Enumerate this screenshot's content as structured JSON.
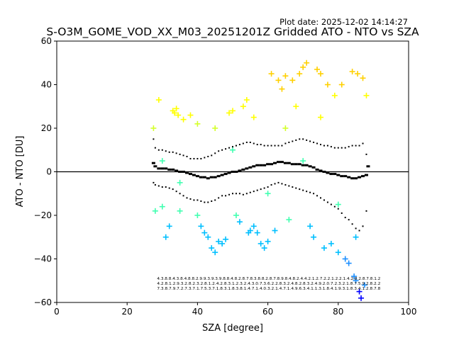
{
  "chart_data": {
    "type": "scatter",
    "plot_date": "Plot date: 2025-12-02 14:14:27",
    "title": "S-O3M_GOME_VOD_XX_M03_20251201Z Gridded ATO - NTO vs SZA",
    "xlabel": "SZA [degree]",
    "ylabel": "ATO - NTO [DU]",
    "xlim": [
      0,
      100
    ],
    "ylim": [
      -60,
      60
    ],
    "xticks": [
      0,
      20,
      40,
      60,
      80,
      100
    ],
    "yticks": [
      -60,
      -40,
      -20,
      0,
      20,
      40,
      60
    ],
    "grid": false,
    "marker": "+",
    "zero_line": 0,
    "colormap": [
      "#0000ff",
      "#1e90ff",
      "#00bfff",
      "#40ffb0",
      "#7cfc00",
      "#d4ff2a",
      "#ffff00",
      "#ffd000",
      "#ffa500"
    ],
    "median_color": "#000000",
    "points": [
      [
        27.5,
        20
      ],
      [
        28,
        -18
      ],
      [
        29,
        33
      ],
      [
        30,
        -16
      ],
      [
        31,
        -30
      ],
      [
        32,
        -25
      ],
      [
        33,
        28
      ],
      [
        33.5,
        27
      ],
      [
        34,
        29
      ],
      [
        34.5,
        26
      ],
      [
        35,
        -18
      ],
      [
        36,
        24
      ],
      [
        38,
        26
      ],
      [
        40,
        22
      ],
      [
        41,
        -25
      ],
      [
        42,
        -28
      ],
      [
        43,
        -30
      ],
      [
        44,
        -35
      ],
      [
        45,
        -37
      ],
      [
        46,
        -32
      ],
      [
        47,
        -33
      ],
      [
        48,
        -31
      ],
      [
        49,
        27
      ],
      [
        50,
        28
      ],
      [
        51,
        -20
      ],
      [
        52,
        -23
      ],
      [
        53,
        30
      ],
      [
        54,
        33
      ],
      [
        54.5,
        -28
      ],
      [
        55,
        -27
      ],
      [
        56,
        -25
      ],
      [
        57,
        -28
      ],
      [
        58,
        -33
      ],
      [
        59,
        -35
      ],
      [
        60,
        -32
      ],
      [
        61,
        45
      ],
      [
        62,
        -27
      ],
      [
        63,
        42
      ],
      [
        64,
        38
      ],
      [
        65,
        44
      ],
      [
        66,
        -22
      ],
      [
        67,
        42
      ],
      [
        68,
        30
      ],
      [
        69,
        45
      ],
      [
        70,
        48
      ],
      [
        71,
        50
      ],
      [
        72,
        -25
      ],
      [
        73,
        -30
      ],
      [
        74,
        47
      ],
      [
        75,
        45
      ],
      [
        76,
        -35
      ],
      [
        77,
        40
      ],
      [
        78,
        -33
      ],
      [
        79,
        35
      ],
      [
        80,
        -37
      ],
      [
        81,
        40
      ],
      [
        82,
        -40
      ],
      [
        83,
        -42
      ],
      [
        84,
        46
      ],
      [
        84.5,
        -48
      ],
      [
        85,
        -50
      ],
      [
        85.5,
        45
      ],
      [
        86,
        -55
      ],
      [
        86.5,
        -58
      ],
      [
        87,
        43
      ],
      [
        87.5,
        -52
      ],
      [
        88,
        35
      ],
      [
        45,
        20
      ],
      [
        56,
        25
      ],
      [
        30,
        5
      ],
      [
        35,
        -5
      ],
      [
        50,
        10
      ],
      [
        60,
        -10
      ],
      [
        70,
        5
      ],
      [
        80,
        -15
      ],
      [
        65,
        20
      ],
      [
        40,
        -20
      ],
      [
        75,
        25
      ],
      [
        85,
        -30
      ]
    ],
    "median": [
      [
        27.5,
        4
      ],
      [
        28,
        2.5
      ],
      [
        29,
        1.5
      ],
      [
        30,
        1.5
      ],
      [
        31,
        1.5
      ],
      [
        32,
        1
      ],
      [
        33,
        1
      ],
      [
        34,
        0.5
      ],
      [
        35,
        0
      ],
      [
        36,
        0
      ],
      [
        37,
        -0.5
      ],
      [
        38,
        -1
      ],
      [
        39,
        -1.5
      ],
      [
        40,
        -2
      ],
      [
        41,
        -2.5
      ],
      [
        42,
        -2.5
      ],
      [
        43,
        -3
      ],
      [
        44,
        -2.5
      ],
      [
        45,
        -2.5
      ],
      [
        46,
        -2
      ],
      [
        47,
        -1.5
      ],
      [
        48,
        -1
      ],
      [
        49,
        -0.5
      ],
      [
        50,
        0
      ],
      [
        51,
        0
      ],
      [
        52,
        0.5
      ],
      [
        53,
        1
      ],
      [
        54,
        1.5
      ],
      [
        55,
        2
      ],
      [
        56,
        2.5
      ],
      [
        57,
        3
      ],
      [
        58,
        3
      ],
      [
        59,
        3
      ],
      [
        60,
        3.5
      ],
      [
        61,
        3.5
      ],
      [
        62,
        4
      ],
      [
        63,
        4.5
      ],
      [
        64,
        4.5
      ],
      [
        65,
        4
      ],
      [
        66,
        4
      ],
      [
        67,
        3.5
      ],
      [
        68,
        3.5
      ],
      [
        69,
        3.5
      ],
      [
        70,
        3
      ],
      [
        71,
        3
      ],
      [
        72,
        2.5
      ],
      [
        73,
        2
      ],
      [
        74,
        1
      ],
      [
        75,
        0.5
      ],
      [
        76,
        0
      ],
      [
        77,
        -0.5
      ],
      [
        78,
        -1
      ],
      [
        79,
        -1
      ],
      [
        80,
        -1.5
      ],
      [
        81,
        -2
      ],
      [
        82,
        -2
      ],
      [
        83,
        -2.5
      ],
      [
        84,
        -3
      ],
      [
        85,
        -3
      ],
      [
        86,
        -2.5
      ],
      [
        87,
        -2
      ],
      [
        88,
        -1.5
      ],
      [
        88.5,
        2.5
      ]
    ],
    "upper_band": [
      [
        27.5,
        15
      ],
      [
        28,
        11
      ],
      [
        29,
        10
      ],
      [
        30,
        10
      ],
      [
        31,
        9.5
      ],
      [
        32,
        9
      ],
      [
        33,
        9
      ],
      [
        34,
        8.5
      ],
      [
        35,
        8
      ],
      [
        36,
        7.5
      ],
      [
        37,
        7
      ],
      [
        38,
        6
      ],
      [
        39,
        6
      ],
      [
        40,
        6
      ],
      [
        41,
        6
      ],
      [
        42,
        6.5
      ],
      [
        43,
        7
      ],
      [
        44,
        7.5
      ],
      [
        45,
        8.5
      ],
      [
        46,
        9.5
      ],
      [
        47,
        10
      ],
      [
        48,
        10.5
      ],
      [
        49,
        11
      ],
      [
        50,
        11.5
      ],
      [
        51,
        12
      ],
      [
        52,
        12.5
      ],
      [
        53,
        13
      ],
      [
        54,
        13.5
      ],
      [
        55,
        13.5
      ],
      [
        56,
        13
      ],
      [
        57,
        12.5
      ],
      [
        58,
        12.5
      ],
      [
        59,
        12
      ],
      [
        60,
        12
      ],
      [
        61,
        12
      ],
      [
        62,
        12
      ],
      [
        63,
        12
      ],
      [
        64,
        12
      ],
      [
        65,
        13
      ],
      [
        66,
        13.5
      ],
      [
        67,
        14
      ],
      [
        68,
        14.5
      ],
      [
        69,
        15
      ],
      [
        70,
        15
      ],
      [
        71,
        14.5
      ],
      [
        72,
        14
      ],
      [
        73,
        13.5
      ],
      [
        74,
        13
      ],
      [
        75,
        12.5
      ],
      [
        76,
        12
      ],
      [
        77,
        12
      ],
      [
        78,
        11.5
      ],
      [
        79,
        11
      ],
      [
        80,
        11
      ],
      [
        81,
        11
      ],
      [
        82,
        11
      ],
      [
        83,
        11.5
      ],
      [
        84,
        12
      ],
      [
        85,
        12
      ],
      [
        86,
        12
      ],
      [
        87,
        13
      ],
      [
        88,
        8
      ]
    ],
    "lower_band": [
      [
        27.5,
        -5
      ],
      [
        28,
        -6
      ],
      [
        29,
        -6.5
      ],
      [
        30,
        -7
      ],
      [
        31,
        -7
      ],
      [
        32,
        -7.5
      ],
      [
        33,
        -8
      ],
      [
        34,
        -9
      ],
      [
        35,
        -10
      ],
      [
        36,
        -11
      ],
      [
        37,
        -12
      ],
      [
        38,
        -12.5
      ],
      [
        39,
        -13
      ],
      [
        40,
        -13
      ],
      [
        41,
        -13.5
      ],
      [
        42,
        -14
      ],
      [
        43,
        -14
      ],
      [
        44,
        -13.5
      ],
      [
        45,
        -13
      ],
      [
        46,
        -12
      ],
      [
        47,
        -11
      ],
      [
        48,
        -11
      ],
      [
        49,
        -10.5
      ],
      [
        50,
        -10
      ],
      [
        51,
        -10
      ],
      [
        52,
        -10
      ],
      [
        53,
        -10.5
      ],
      [
        54,
        -10
      ],
      [
        55,
        -9.5
      ],
      [
        56,
        -9
      ],
      [
        57,
        -8.5
      ],
      [
        58,
        -8
      ],
      [
        59,
        -7.5
      ],
      [
        60,
        -7
      ],
      [
        61,
        -6
      ],
      [
        62,
        -5.5
      ],
      [
        63,
        -5
      ],
      [
        64,
        -5.5
      ],
      [
        65,
        -6
      ],
      [
        66,
        -6.5
      ],
      [
        67,
        -7
      ],
      [
        68,
        -7.5
      ],
      [
        69,
        -8
      ],
      [
        70,
        -8.5
      ],
      [
        71,
        -9
      ],
      [
        72,
        -9.5
      ],
      [
        73,
        -10
      ],
      [
        74,
        -11
      ],
      [
        75,
        -12
      ],
      [
        76,
        -13
      ],
      [
        77,
        -14
      ],
      [
        78,
        -15
      ],
      [
        79,
        -16
      ],
      [
        80,
        -17
      ],
      [
        81,
        -19
      ],
      [
        82,
        -21
      ],
      [
        83,
        -22
      ],
      [
        84,
        -24
      ],
      [
        85,
        -26
      ],
      [
        86,
        -27
      ],
      [
        87,
        -25
      ],
      [
        88,
        -18
      ]
    ],
    "annotation_rows": [
      "4.3.8.8.4.3.8.4.8.8.2.9.9.3.9.3.9.8.8.4.8.2.8.7.8.3.8.8.2.8.7.8.9.8.4.8.2.4.4.2.1.2.7.2.2.1.2.2.1.4.2.8.2.8.7.8.1.2",
      "4.2.8.1.2.9.3.2.8.2.3.2.8.1.2.4.2.8.3.1.2.3.2.4.3.0.7.3.6.2.2.8.3.2.4.8.2.8.3.2.4.9.2.0.7.2.3.2.1.8.7.5.9.2.8.2.2",
      "7.3.8.7.9.7.2.7.3.7.1.7.5.3.7.1.8.3.1.8.3.8.1.4.7.1.4.0.3.2.1.4.7.1.4.9.6.3.4.1.1.3.1.8.4.1.9.3.1.8.3.4.1.2.8.7.8"
    ]
  }
}
